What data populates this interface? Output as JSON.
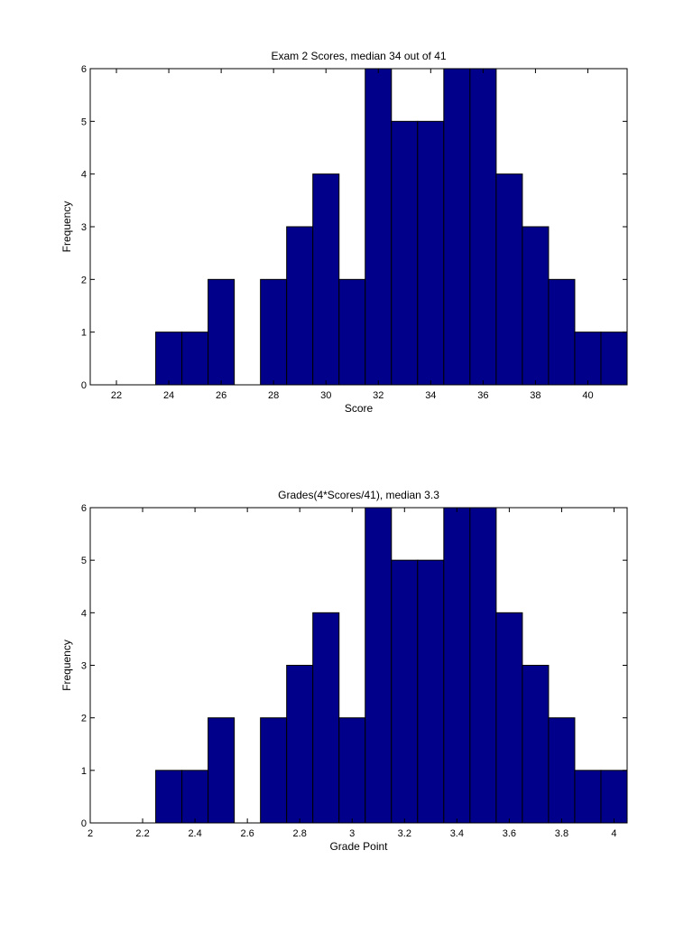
{
  "chart_data": [
    {
      "type": "bar",
      "title": "Exam 2 Scores, median  34 out of 41",
      "xlabel": "Score",
      "ylabel": "Frequency",
      "bar_color": "#00008b",
      "edge_color": "#000000",
      "xlim": [
        21,
        41.5
      ],
      "ylim": [
        0,
        6
      ],
      "xticks": [
        22,
        24,
        26,
        28,
        30,
        32,
        34,
        36,
        38,
        40
      ],
      "yticks": [
        0,
        1,
        2,
        3,
        4,
        5,
        6
      ],
      "x": [
        21,
        22,
        23,
        24,
        25,
        26,
        27,
        28,
        29,
        30,
        31,
        32,
        33,
        34,
        35,
        36,
        37,
        38,
        39,
        40,
        41
      ],
      "values": [
        0,
        0,
        0,
        1,
        1,
        2,
        0,
        2,
        3,
        4,
        2,
        6,
        5,
        5,
        6,
        6,
        4,
        3,
        2,
        1,
        1
      ],
      "bin_width": 1
    },
    {
      "type": "bar",
      "title": "Grades(4*Scores/41), median 3.3",
      "xlabel": "Grade Point",
      "ylabel": "Frequency",
      "bar_color": "#00008b",
      "edge_color": "#000000",
      "xlim": [
        2.0,
        4.05
      ],
      "ylim": [
        0,
        6
      ],
      "xticks": [
        2,
        2.2,
        2.4,
        2.6,
        2.8,
        3,
        3.2,
        3.4,
        3.6,
        3.8,
        4
      ],
      "yticks": [
        0,
        1,
        2,
        3,
        4,
        5,
        6
      ],
      "x": [
        2.1,
        2.2,
        2.3,
        2.4,
        2.5,
        2.6,
        2.7,
        2.8,
        2.9,
        3.0,
        3.1,
        3.2,
        3.3,
        3.4,
        3.5,
        3.6,
        3.7,
        3.8,
        3.9,
        4.0
      ],
      "values": [
        0,
        0,
        1,
        1,
        2,
        0,
        2,
        3,
        4,
        2,
        6,
        5,
        5,
        6,
        6,
        4,
        3,
        2,
        1,
        1
      ],
      "bin_width": 0.1
    }
  ]
}
